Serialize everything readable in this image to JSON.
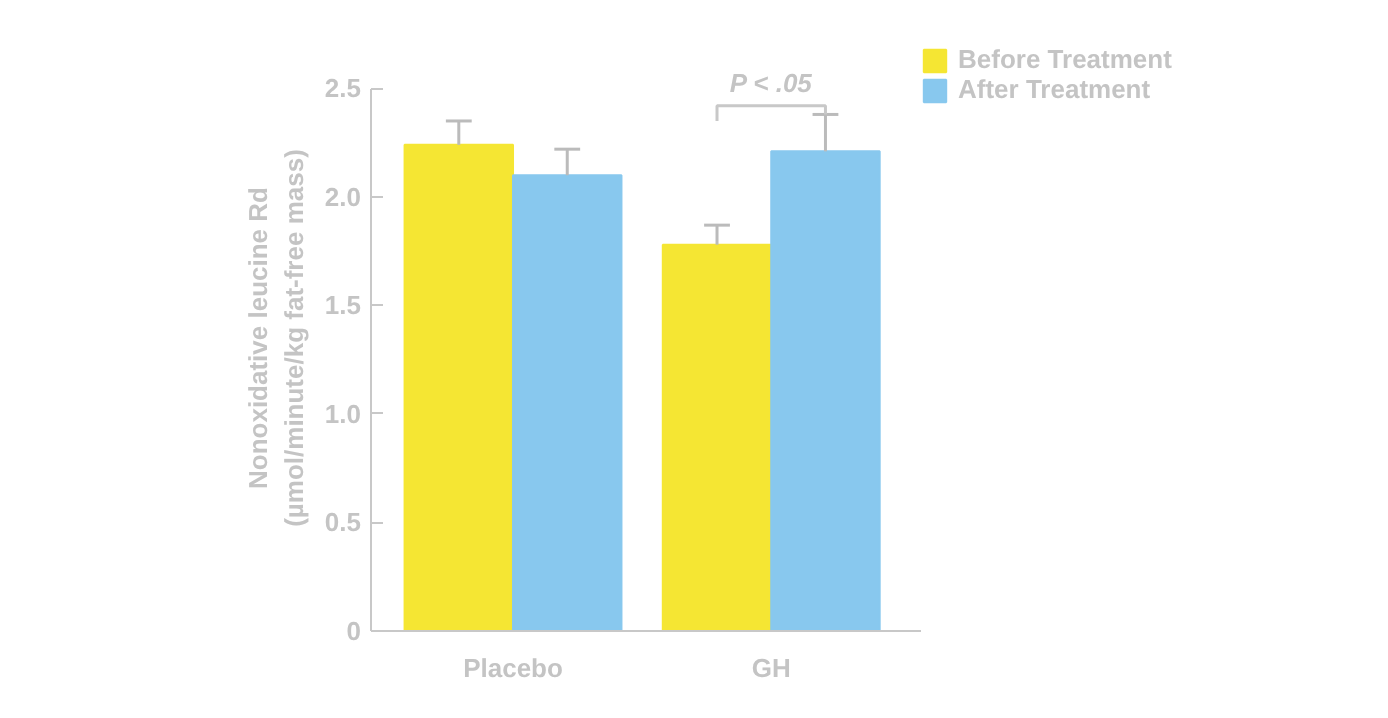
{
  "chart_data": {
    "type": "bar",
    "categories": [
      "Placebo",
      "GH"
    ],
    "ylabel": "Nonoxidative leucine Rd\n(µmol/minute/kg fat-free mass)",
    "series": [
      {
        "name": "Before Treatment",
        "color": "#f5e633",
        "values": [
          2.24,
          1.78
        ],
        "errors": [
          [
            2.24,
            2.35
          ],
          [
            1.78,
            1.87
          ]
        ]
      },
      {
        "name": "After Treatment",
        "color": "#88c8ee",
        "values": [
          2.1,
          2.21
        ],
        "errors": [
          [
            2.1,
            2.22
          ],
          [
            2.21,
            2.38
          ]
        ]
      }
    ],
    "ylim": [
      0,
      2.5
    ],
    "yticks": [
      0,
      0.5,
      {
        "value": 1,
        "label": "1.0"
      },
      1.5,
      {
        "value": 2,
        "label": "2.0"
      },
      2.5
    ],
    "annotations": [
      "P < .05"
    ],
    "grid": false,
    "legend": "top right"
  }
}
